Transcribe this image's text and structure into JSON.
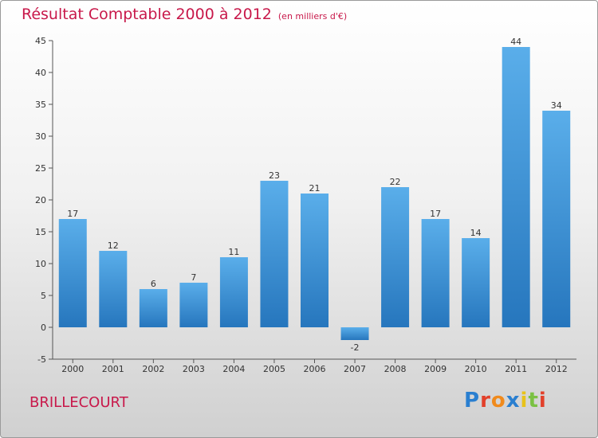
{
  "header": {
    "title": "Résultat Comptable 2000 à 2012",
    "subtitle": "(en milliers d'€)"
  },
  "footer": {
    "commune": "BRILLECOURT",
    "logo": {
      "text": "Proxiti",
      "letter_colors": [
        "#2a7fd0",
        "#e2402a",
        "#f08a1c",
        "#2a7fd0",
        "#e8c21a",
        "#7ac143",
        "#e2402a"
      ]
    }
  },
  "colors": {
    "title": "#c8184a",
    "bar": "#4a9fe0",
    "bar_dark": "#2b7cc3"
  },
  "chart_data": {
    "type": "bar",
    "categories": [
      "2000",
      "2001",
      "2002",
      "2003",
      "2004",
      "2005",
      "2006",
      "2007",
      "2008",
      "2009",
      "2010",
      "2011",
      "2012"
    ],
    "values": [
      17,
      12,
      6,
      7,
      11,
      23,
      21,
      -2,
      22,
      17,
      14,
      44,
      34
    ],
    "data_labels": [
      "17",
      "12",
      "6",
      "7",
      "11",
      "23",
      "21",
      "-2",
      "22",
      "17",
      "14",
      "44",
      "34"
    ],
    "y_ticks": [
      "-5",
      "0",
      "5",
      "10",
      "15",
      "20",
      "25",
      "30",
      "35",
      "40",
      "45"
    ],
    "ylim": [
      -5,
      45
    ],
    "grid": false,
    "title": "Résultat Comptable 2000 à 2012",
    "xlabel": "",
    "ylabel": ""
  }
}
